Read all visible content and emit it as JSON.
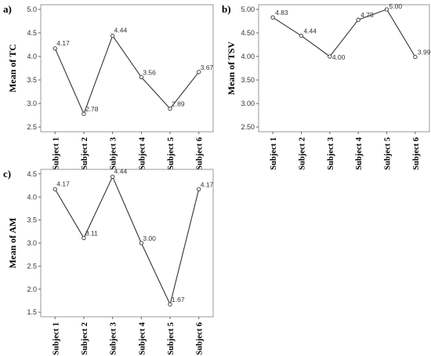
{
  "chart_data": [
    {
      "type": "line",
      "panel": "a)",
      "ylabel": "Mean of TC",
      "categories": [
        "Subject 1",
        "Subject 2",
        "Subject 3",
        "Subject 4",
        "Subject 5",
        "Subject 6"
      ],
      "values": [
        4.17,
        2.78,
        4.44,
        3.56,
        2.89,
        3.67
      ],
      "value_labels": [
        "4.17",
        "2.78",
        "4.44",
        "3.56",
        "2.89",
        "3.67"
      ],
      "ylim": [
        2.4,
        5.1
      ],
      "yticks": [
        2.5,
        3.0,
        3.5,
        4.0,
        4.5,
        5.0
      ],
      "ytick_labels": [
        "2.5",
        "3.0",
        "3.5",
        "4.0",
        "4.5",
        "5.0"
      ],
      "grid": false
    },
    {
      "type": "line",
      "panel": "b)",
      "ylabel": "Mean of TSV",
      "categories": [
        "Subject 1",
        "Subject 2",
        "Subject 3",
        "Subject 4",
        "Subject 5",
        "Subject 6"
      ],
      "values": [
        4.83,
        4.44,
        4.0,
        4.78,
        5.0,
        3.99
      ],
      "value_labels": [
        "4.83",
        "4.44",
        "4.00",
        "4.78",
        "5.00",
        "3.99"
      ],
      "ylim": [
        2.4,
        5.1
      ],
      "yticks": [
        2.5,
        3.0,
        3.5,
        4.0,
        4.5,
        5.0
      ],
      "ytick_labels": [
        "2.50",
        "3.00",
        "3.50",
        "4.00",
        "4.50",
        "5.00"
      ],
      "grid": false
    },
    {
      "type": "line",
      "panel": "c)",
      "ylabel": "Mean of AM",
      "categories": [
        "Subject 1",
        "Subject 2",
        "Subject 3",
        "Subject 4",
        "Subject 5",
        "Subject 6"
      ],
      "values": [
        4.17,
        3.11,
        4.44,
        3.0,
        1.67,
        4.17
      ],
      "value_labels": [
        "4.17",
        "3.11",
        "4.44",
        "3.00",
        "1.67",
        "4.17"
      ],
      "ylim": [
        1.4,
        4.6
      ],
      "yticks": [
        1.5,
        2.0,
        2.5,
        3.0,
        3.5,
        4.0,
        4.5
      ],
      "ytick_labels": [
        "1.5",
        "2.0",
        "2.5",
        "3.0",
        "3.5",
        "4.0",
        "4.5"
      ],
      "grid": false
    }
  ]
}
